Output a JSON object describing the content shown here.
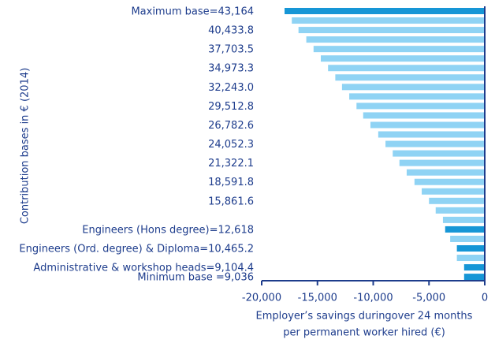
{
  "chart_data": {
    "type": "hbar",
    "categories": [
      "Maximum base=43,164",
      null,
      "40,433.8",
      null,
      "37,703.5",
      null,
      "34,973.3",
      null,
      "32,243.0",
      null,
      "29,512.8",
      null,
      "26,782.6",
      null,
      "24,052.3",
      null,
      "21,322.1",
      null,
      "18,591.8",
      null,
      "15,861.6",
      null,
      null,
      "Engineers (Hons degree)=12,618",
      null,
      "Engineers (Ord. degree) & Diploma=10,465.2",
      null,
      "Administrative & workshop heads=9,104.4",
      "Minimum base =9,036"
    ],
    "values": [
      -17950,
      -17300,
      -16700,
      -16000,
      -15350,
      -14700,
      -14050,
      -13400,
      -12800,
      -12150,
      -11500,
      -10900,
      -10250,
      -9550,
      -8900,
      -8250,
      -7650,
      -7000,
      -6300,
      -5650,
      -5000,
      -4400,
      -3750,
      -3550,
      -3100,
      -2500,
      -2500,
      -1850,
      -1850
    ],
    "colors": [
      "#1696d6",
      "#8fd3f4",
      "#8fd3f4",
      "#8fd3f4",
      "#8fd3f4",
      "#8fd3f4",
      "#8fd3f4",
      "#8fd3f4",
      "#8fd3f4",
      "#8fd3f4",
      "#8fd3f4",
      "#8fd3f4",
      "#8fd3f4",
      "#8fd3f4",
      "#8fd3f4",
      "#8fd3f4",
      "#8fd3f4",
      "#8fd3f4",
      "#8fd3f4",
      "#8fd3f4",
      "#8fd3f4",
      "#8fd3f4",
      "#8fd3f4",
      "#1696d6",
      "#8fd3f4",
      "#1696d6",
      "#8fd3f4",
      "#1696d6",
      "#1696d6"
    ],
    "xlim": [
      -20000,
      0
    ],
    "xticks": [
      {
        "value": -20000,
        "label": "-20,000"
      },
      {
        "value": -15000,
        "label": "-15,000"
      },
      {
        "value": -10000,
        "label": "-10,000"
      },
      {
        "value": -5000,
        "label": "-5,000"
      },
      0
    ],
    "xlabel": [
      "Employer’s savings duringover 24 months",
      "per permanent worker hired (€)"
    ],
    "ylabel": "Contribution bases in € (2014)"
  }
}
